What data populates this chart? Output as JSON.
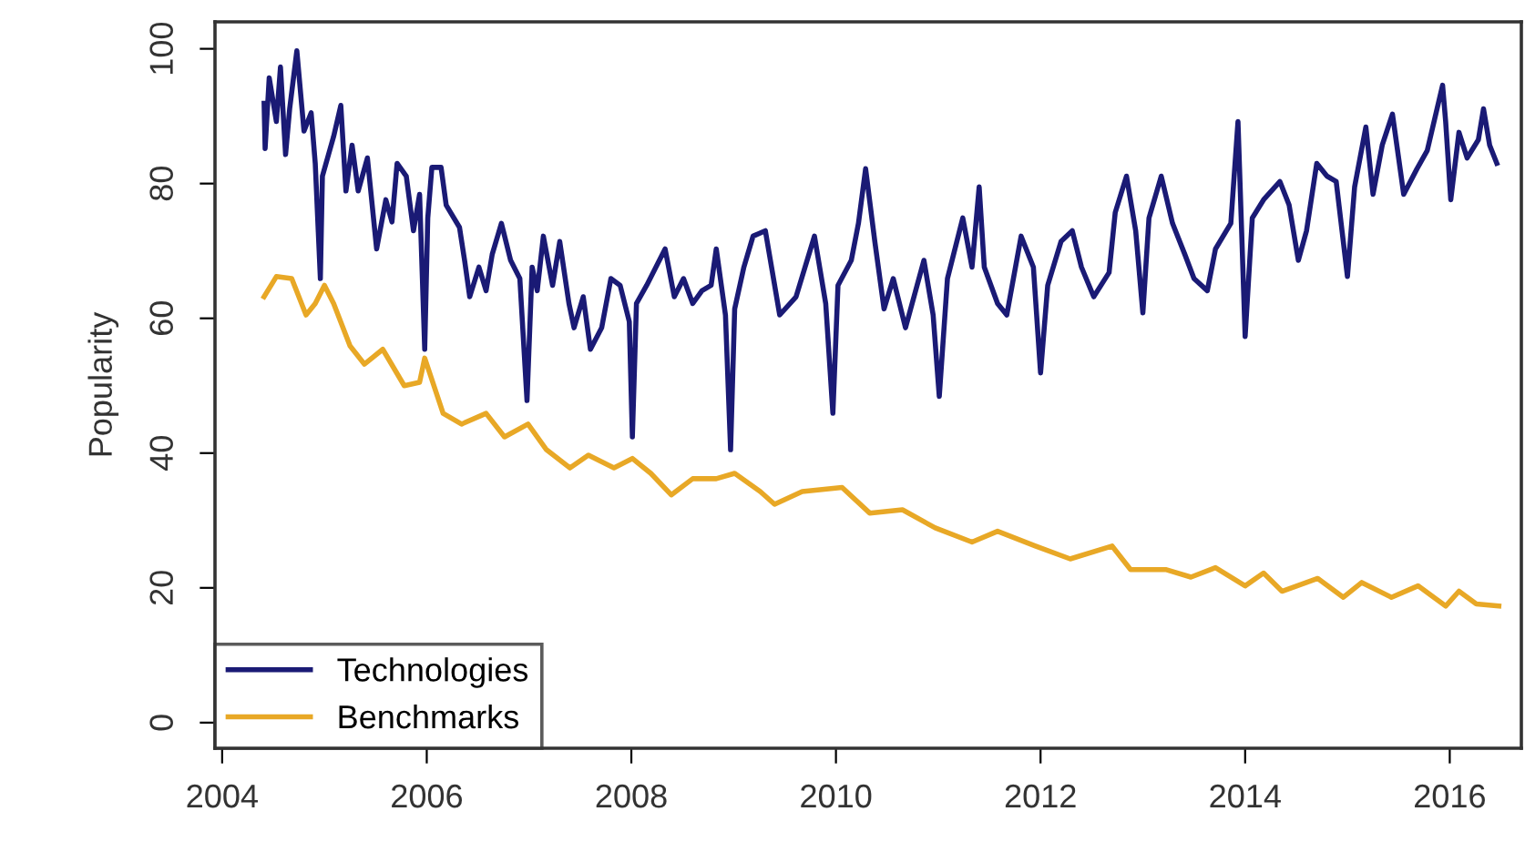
{
  "chart_data": {
    "type": "line",
    "ylabel": "Popularity",
    "xlim": [
      2003.93,
      2016.7
    ],
    "xticks": [
      2004,
      2006,
      2008,
      2010,
      2012,
      2014,
      2016
    ],
    "ylim": [
      -3.8,
      104
    ],
    "yticks": [
      0,
      20,
      40,
      60,
      80,
      100
    ],
    "grid": false,
    "legend": "bottom left",
    "line_style": "solid",
    "marker": "none",
    "series": [
      {
        "name": "Technologies",
        "color": "#1a1a75",
        "x": [
          2004.41,
          2004.42,
          2004.46,
          2004.53,
          2004.57,
          2004.62,
          2004.66,
          2004.73,
          2004.8,
          2004.87,
          2004.91,
          2004.96,
          2004.98,
          2005.09,
          2005.16,
          2005.21,
          2005.27,
          2005.33,
          2005.42,
          2005.51,
          2005.6,
          2005.66,
          2005.71,
          2005.8,
          2005.87,
          2005.93,
          2005.98,
          2006.01,
          2006.05,
          2006.14,
          2006.19,
          2006.32,
          2006.37,
          2006.42,
          2006.51,
          2006.58,
          2006.64,
          2006.73,
          2006.82,
          2006.91,
          2006.98,
          2007.03,
          2007.08,
          2007.14,
          2007.23,
          2007.3,
          2007.39,
          2007.44,
          2007.53,
          2007.6,
          2007.71,
          2007.8,
          2007.89,
          2007.98,
          2008.01,
          2008.05,
          2008.15,
          2008.24,
          2008.33,
          2008.42,
          2008.51,
          2008.6,
          2008.69,
          2008.78,
          2008.83,
          2008.92,
          2008.97,
          2009.01,
          2009.1,
          2009.19,
          2009.31,
          2009.45,
          2009.61,
          2009.79,
          2009.9,
          2009.97,
          2010.02,
          2010.15,
          2010.22,
          2010.29,
          2010.38,
          2010.47,
          2010.56,
          2010.68,
          2010.86,
          2010.95,
          2011.01,
          2011.09,
          2011.24,
          2011.33,
          2011.4,
          2011.45,
          2011.58,
          2011.67,
          2011.81,
          2011.93,
          2012.0,
          2012.07,
          2012.2,
          2012.31,
          2012.4,
          2012.52,
          2012.67,
          2012.73,
          2012.84,
          2012.93,
          2013.0,
          2013.06,
          2013.18,
          2013.29,
          2013.41,
          2013.5,
          2013.63,
          2013.71,
          2013.86,
          2013.93,
          2014.0,
          2014.07,
          2014.18,
          2014.34,
          2014.43,
          2014.52,
          2014.6,
          2014.7,
          2014.8,
          2014.89,
          2015.0,
          2015.07,
          2015.18,
          2015.25,
          2015.34,
          2015.44,
          2015.55,
          2015.68,
          2015.78,
          2015.93,
          2015.96,
          2016.01,
          2016.09,
          2016.17,
          2016.28,
          2016.33,
          2016.39,
          2016.46
        ],
        "values": [
          91.9,
          85.2,
          95.7,
          89.2,
          97.3,
          84.3,
          91.1,
          99.7,
          87.8,
          90.5,
          83,
          65.9,
          81.1,
          87,
          91.6,
          78.9,
          85.7,
          78.9,
          83.8,
          70.3,
          77.6,
          74.3,
          83,
          81.1,
          73,
          78.4,
          55.4,
          74.9,
          82.4,
          82.4,
          76.8,
          73.5,
          68.6,
          63.2,
          67.6,
          64.1,
          69.5,
          74.1,
          68.6,
          65.9,
          47.8,
          67.6,
          64.1,
          72.2,
          64.9,
          71.4,
          62.2,
          58.6,
          63.2,
          55.4,
          58.6,
          65.9,
          64.9,
          59.5,
          42.4,
          62.2,
          64.9,
          67.6,
          70.3,
          63.2,
          65.9,
          62.2,
          64.1,
          64.9,
          70.3,
          60.5,
          40.5,
          61.4,
          67.6,
          72.2,
          73,
          60.5,
          63.2,
          72.2,
          62.2,
          45.9,
          64.9,
          68.6,
          74.1,
          82.2,
          71.4,
          61.4,
          65.9,
          58.6,
          68.6,
          60.5,
          48.4,
          65.9,
          74.9,
          67.6,
          79.5,
          67.6,
          62.2,
          60.5,
          72.2,
          67.6,
          51.9,
          64.9,
          71.4,
          73,
          67.6,
          63.2,
          66.8,
          75.7,
          81.1,
          73,
          60.8,
          74.9,
          81.1,
          74.1,
          69.5,
          65.9,
          64.1,
          70.3,
          74.1,
          89.2,
          57.3,
          74.9,
          77.6,
          80.3,
          76.8,
          68.6,
          73,
          83,
          81.1,
          80.3,
          66.2,
          79.5,
          88.4,
          78.4,
          85.7,
          90.3,
          78.4,
          82.2,
          84.9,
          94.6,
          89.2,
          77.6,
          87.6,
          83.8,
          86.5,
          91.1,
          85.7,
          83
        ]
      },
      {
        "name": "Benchmarks",
        "color": "#e8a826",
        "x": [
          2004.41,
          2004.53,
          2004.68,
          2004.82,
          2004.91,
          2005.0,
          2005.09,
          2005.25,
          2005.39,
          2005.57,
          2005.78,
          2005.93,
          2005.98,
          2006.16,
          2006.34,
          2006.58,
          2006.76,
          2006.99,
          2007.17,
          2007.4,
          2007.58,
          2007.83,
          2008.01,
          2008.19,
          2008.39,
          2008.6,
          2008.83,
          2009.01,
          2009.26,
          2009.4,
          2009.67,
          2010.06,
          2010.33,
          2010.65,
          2010.97,
          2011.33,
          2011.58,
          2011.95,
          2012.29,
          2012.7,
          2012.88,
          2013.23,
          2013.47,
          2013.71,
          2014.0,
          2014.18,
          2014.36,
          2014.71,
          2014.96,
          2015.14,
          2015.43,
          2015.69,
          2015.96,
          2016.09,
          2016.26,
          2016.48
        ],
        "values": [
          63.2,
          66.2,
          65.9,
          60.5,
          62.2,
          64.9,
          62.2,
          55.9,
          53.2,
          55.4,
          50,
          50.5,
          54.1,
          45.9,
          44.3,
          45.9,
          42.4,
          44.3,
          40.5,
          37.8,
          39.7,
          37.8,
          39.2,
          37,
          33.8,
          36.2,
          36.2,
          37,
          34.3,
          32.4,
          34.3,
          34.9,
          31.1,
          31.6,
          28.9,
          26.8,
          28.4,
          26.2,
          24.3,
          26.2,
          22.7,
          22.7,
          21.6,
          23,
          20.3,
          22.2,
          19.5,
          21.4,
          18.6,
          20.8,
          18.6,
          20.3,
          17.3,
          19.5,
          17.6,
          17.3
        ]
      }
    ]
  }
}
